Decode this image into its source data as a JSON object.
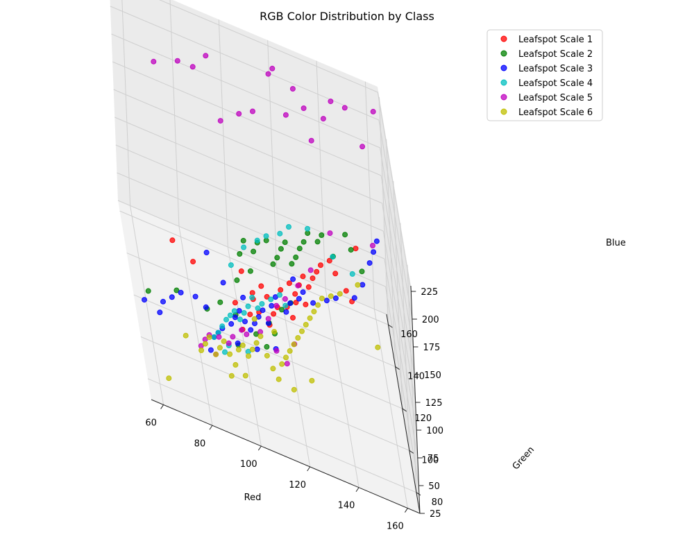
{
  "chart_data": {
    "type": "scatter3d",
    "title": "RGB Color Distribution by Class",
    "xlabel": "Red",
    "ylabel": "Green",
    "zlabel": "Blue",
    "xlim": [
      55,
      165
    ],
    "ylim": [
      70,
      165
    ],
    "zlim": [
      25,
      230
    ],
    "xticks": [
      "60",
      "80",
      "100",
      "120",
      "140",
      "160"
    ],
    "yticks": [
      "80",
      "100",
      "120",
      "140",
      "160"
    ],
    "zticks": [
      "25",
      "50",
      "75",
      "100",
      "125",
      "150",
      "175",
      "200",
      "225"
    ],
    "legend_position": "top-right",
    "grid": true,
    "series": [
      {
        "name": "Leafspot Scale 1",
        "color": "#ff0000",
        "points": [
          [
            72,
            120,
            90
          ],
          [
            80,
            118,
            82
          ],
          [
            96,
            110,
            75
          ],
          [
            100,
            118,
            92
          ],
          [
            104,
            116,
            80
          ],
          [
            104,
            114,
            78
          ],
          [
            108,
            118,
            86
          ],
          [
            110,
            116,
            82
          ],
          [
            112,
            112,
            76
          ],
          [
            114,
            114,
            80
          ],
          [
            116,
            118,
            90
          ],
          [
            120,
            120,
            96
          ],
          [
            122,
            118,
            92
          ],
          [
            124,
            120,
            98
          ],
          [
            126,
            122,
            104
          ],
          [
            128,
            120,
            100
          ],
          [
            130,
            122,
            106
          ],
          [
            132,
            124,
            110
          ],
          [
            134,
            126,
            114
          ],
          [
            138,
            128,
            118
          ],
          [
            140,
            126,
            112
          ],
          [
            144,
            124,
            104
          ],
          [
            146,
            122,
            100
          ],
          [
            150,
            136,
            125
          ],
          [
            122,
            116,
            88
          ],
          [
            118,
            114,
            84
          ],
          [
            106,
            112,
            72
          ],
          [
            102,
            110,
            70
          ],
          [
            110,
            110,
            68
          ],
          [
            98,
            104,
            64
          ],
          [
            120,
            112,
            80
          ],
          [
            126,
            116,
            90
          ]
        ]
      },
      {
        "name": "Leafspot Scale 2",
        "color": "#008000",
        "points": [
          [
            60,
            110,
            52
          ],
          [
            72,
            112,
            60
          ],
          [
            84,
            108,
            62
          ],
          [
            90,
            112,
            66
          ],
          [
            96,
            110,
            64
          ],
          [
            98,
            118,
            82
          ],
          [
            100,
            122,
            100
          ],
          [
            102,
            124,
            110
          ],
          [
            104,
            120,
            92
          ],
          [
            106,
            124,
            104
          ],
          [
            108,
            126,
            110
          ],
          [
            112,
            128,
            112
          ],
          [
            114,
            124,
            100
          ],
          [
            116,
            126,
            104
          ],
          [
            118,
            128,
            110
          ],
          [
            120,
            130,
            114
          ],
          [
            122,
            126,
            104
          ],
          [
            124,
            128,
            108
          ],
          [
            126,
            130,
            114
          ],
          [
            128,
            132,
            118
          ],
          [
            130,
            134,
            124
          ],
          [
            134,
            134,
            120
          ],
          [
            136,
            136,
            124
          ],
          [
            140,
            132,
            116
          ],
          [
            146,
            138,
            130
          ],
          [
            148,
            136,
            122
          ],
          [
            152,
            134,
            110
          ],
          [
            104,
            108,
            58
          ],
          [
            110,
            112,
            66
          ],
          [
            112,
            110,
            62
          ],
          [
            116,
            116,
            76
          ],
          [
            108,
            106,
            54
          ],
          [
            96,
            104,
            48
          ],
          [
            120,
            118,
            82
          ]
        ]
      },
      {
        "name": "Leafspot Scale 3",
        "color": "#0000ff",
        "points": [
          [
            58,
            108,
            46
          ],
          [
            64,
            106,
            44
          ],
          [
            66,
            110,
            48
          ],
          [
            70,
            112,
            52
          ],
          [
            74,
            114,
            56
          ],
          [
            80,
            114,
            58
          ],
          [
            84,
            112,
            56
          ],
          [
            86,
            104,
            46
          ],
          [
            88,
            106,
            48
          ],
          [
            90,
            108,
            50
          ],
          [
            94,
            110,
            54
          ],
          [
            96,
            112,
            58
          ],
          [
            98,
            114,
            62
          ],
          [
            100,
            112,
            58
          ],
          [
            102,
            110,
            56
          ],
          [
            104,
            112,
            60
          ],
          [
            106,
            114,
            64
          ],
          [
            108,
            116,
            68
          ],
          [
            110,
            114,
            62
          ],
          [
            112,
            118,
            72
          ],
          [
            114,
            120,
            78
          ],
          [
            118,
            118,
            72
          ],
          [
            120,
            120,
            78
          ],
          [
            124,
            122,
            82
          ],
          [
            126,
            124,
            86
          ],
          [
            130,
            124,
            80
          ],
          [
            136,
            126,
            84
          ],
          [
            140,
            128,
            86
          ],
          [
            148,
            130,
            90
          ],
          [
            152,
            134,
            98
          ],
          [
            156,
            140,
            110
          ],
          [
            158,
            142,
            118
          ],
          [
            160,
            146,
            122
          ],
          [
            122,
            124,
            94
          ],
          [
            100,
            116,
            72
          ],
          [
            92,
            116,
            78
          ],
          [
            86,
            120,
            92
          ],
          [
            96,
            106,
            46
          ],
          [
            104,
            106,
            48
          ],
          [
            112,
            108,
            52
          ],
          [
            84,
            100,
            40
          ]
        ]
      },
      {
        "name": "Leafspot Scale 4",
        "color": "#00bfbf",
        "points": [
          [
            86,
            104,
            46
          ],
          [
            88,
            106,
            48
          ],
          [
            90,
            108,
            52
          ],
          [
            92,
            110,
            56
          ],
          [
            94,
            112,
            58
          ],
          [
            96,
            114,
            60
          ],
          [
            98,
            112,
            58
          ],
          [
            100,
            114,
            62
          ],
          [
            102,
            116,
            66
          ],
          [
            104,
            118,
            72
          ],
          [
            106,
            116,
            68
          ],
          [
            108,
            118,
            70
          ],
          [
            112,
            120,
            74
          ],
          [
            116,
            122,
            78
          ],
          [
            118,
            120,
            74
          ],
          [
            96,
            120,
            90
          ],
          [
            102,
            124,
            104
          ],
          [
            108,
            126,
            112
          ],
          [
            112,
            128,
            116
          ],
          [
            118,
            130,
            120
          ],
          [
            122,
            132,
            126
          ],
          [
            130,
            134,
            128
          ],
          [
            140,
            134,
            112
          ],
          [
            148,
            134,
            104
          ],
          [
            90,
            102,
            40
          ],
          [
            92,
            104,
            44
          ],
          [
            100,
            104,
            46
          ]
        ]
      },
      {
        "name": "Leafspot Scale 5",
        "color": "#bf00bf",
        "points": [
          [
            70,
            146,
            200
          ],
          [
            80,
            146,
            210
          ],
          [
            86,
            144,
            214
          ],
          [
            92,
            148,
            222
          ],
          [
            96,
            138,
            186
          ],
          [
            104,
            140,
            196
          ],
          [
            110,
            142,
            200
          ],
          [
            118,
            150,
            226
          ],
          [
            120,
            152,
            229
          ],
          [
            124,
            144,
            206
          ],
          [
            128,
            150,
            222
          ],
          [
            132,
            148,
            212
          ],
          [
            134,
            142,
            196
          ],
          [
            140,
            148,
            210
          ],
          [
            144,
            154,
            218
          ],
          [
            150,
            156,
            214
          ],
          [
            156,
            150,
            196
          ],
          [
            162,
            158,
            218
          ],
          [
            80,
            100,
            40
          ],
          [
            82,
            102,
            44
          ],
          [
            84,
            104,
            46
          ],
          [
            88,
            104,
            48
          ],
          [
            94,
            106,
            50
          ],
          [
            100,
            108,
            54
          ],
          [
            106,
            110,
            58
          ],
          [
            110,
            114,
            66
          ],
          [
            114,
            118,
            74
          ],
          [
            118,
            120,
            80
          ],
          [
            124,
            124,
            90
          ],
          [
            130,
            128,
            102
          ],
          [
            140,
            140,
            122
          ],
          [
            158,
            144,
            120
          ],
          [
            86,
            100,
            38
          ],
          [
            92,
            104,
            46
          ],
          [
            98,
            108,
            56
          ],
          [
            112,
            106,
            54
          ],
          [
            120,
            110,
            60
          ],
          [
            116,
            104,
            50
          ]
        ]
      },
      {
        "name": "Leafspot Scale 6",
        "color": "#bfbf00",
        "points": [
          [
            64,
            82,
            30
          ],
          [
            74,
            102,
            40
          ],
          [
            80,
            100,
            36
          ],
          [
            82,
            102,
            40
          ],
          [
            84,
            104,
            44
          ],
          [
            86,
            100,
            38
          ],
          [
            88,
            102,
            42
          ],
          [
            90,
            104,
            46
          ],
          [
            92,
            102,
            40
          ],
          [
            94,
            100,
            36
          ],
          [
            96,
            104,
            44
          ],
          [
            98,
            106,
            46
          ],
          [
            100,
            104,
            42
          ],
          [
            102,
            106,
            46
          ],
          [
            104,
            108,
            50
          ],
          [
            106,
            110,
            54
          ],
          [
            108,
            106,
            46
          ],
          [
            110,
            104,
            40
          ],
          [
            112,
            102,
            36
          ],
          [
            114,
            106,
            44
          ],
          [
            116,
            108,
            48
          ],
          [
            118,
            110,
            52
          ],
          [
            120,
            112,
            56
          ],
          [
            122,
            114,
            60
          ],
          [
            124,
            116,
            64
          ],
          [
            126,
            118,
            68
          ],
          [
            128,
            120,
            72
          ],
          [
            130,
            122,
            76
          ],
          [
            132,
            124,
            80
          ],
          [
            134,
            126,
            84
          ],
          [
            138,
            128,
            86
          ],
          [
            142,
            130,
            88
          ],
          [
            150,
            134,
            96
          ],
          [
            156,
            122,
            68
          ],
          [
            112,
            112,
            60
          ],
          [
            118,
            100,
            36
          ],
          [
            126,
            104,
            44
          ],
          [
            104,
            112,
            64
          ],
          [
            98,
            100,
            30
          ],
          [
            92,
            98,
            28
          ]
        ]
      }
    ]
  }
}
